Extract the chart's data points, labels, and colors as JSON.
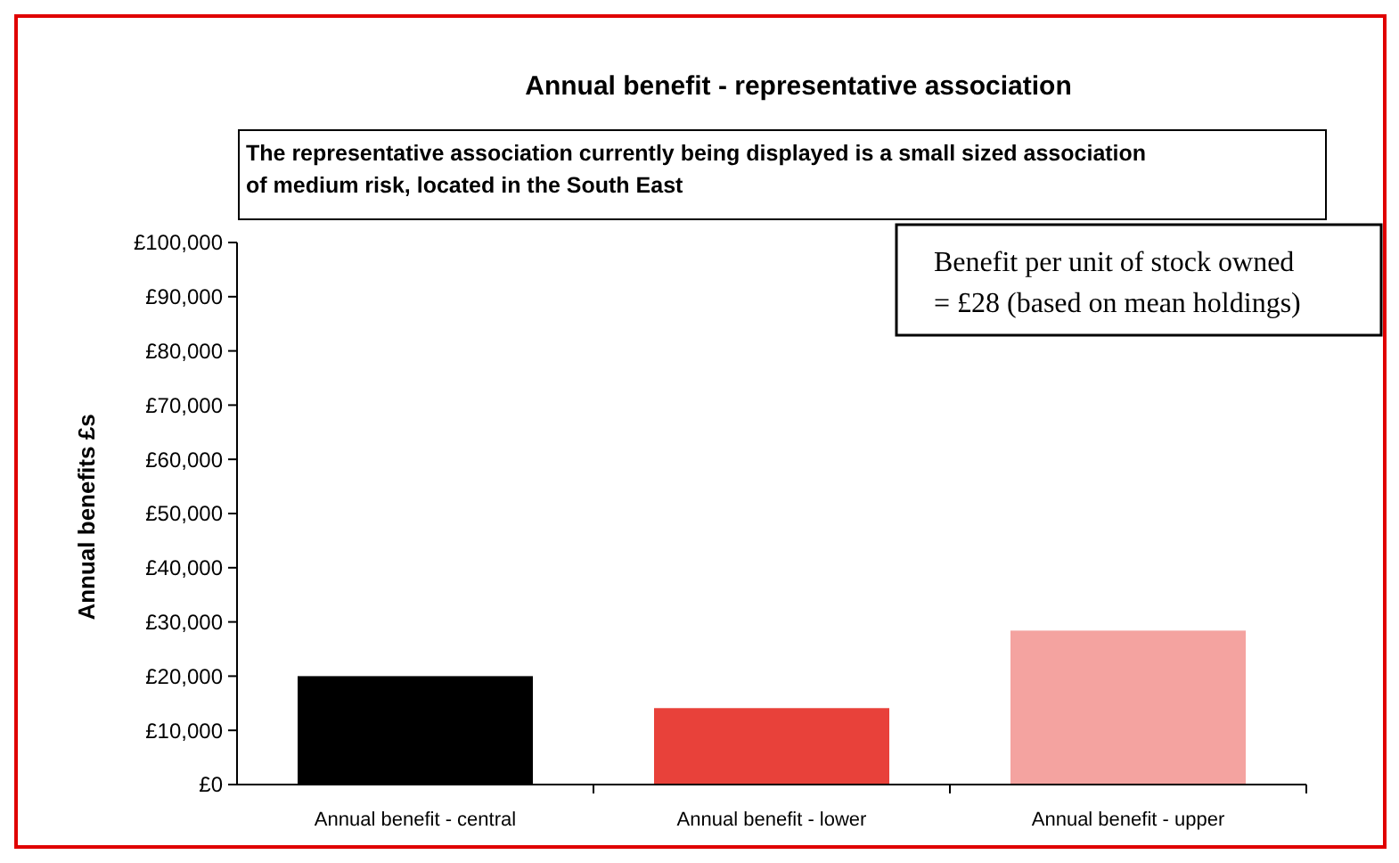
{
  "chart_data": {
    "type": "bar",
    "title": "Annual benefit - representative association",
    "subtitle": "The representative association currently being displayed is a small sized association\nof  medium risk, located in the South East",
    "annotations": [
      "Benefit per unit of stock owned\n= £28 (based on mean holdings)"
    ],
    "ylabel": "Annual benefits £s",
    "categories": [
      "Annual benefit - central",
      "Annual benefit - lower",
      "Annual benefit - upper"
    ],
    "values": [
      20000,
      14100,
      28400
    ],
    "colors": [
      "#000000",
      "#e8413a",
      "#f4a3a0"
    ],
    "ylim": [
      0,
      100000
    ],
    "yticks": [
      {
        "value": 0,
        "label": "£0"
      },
      {
        "value": 10000,
        "label": "£10,000"
      },
      {
        "value": 20000,
        "label": "£20,000"
      },
      {
        "value": 30000,
        "label": "£30,000"
      },
      {
        "value": 40000,
        "label": "£40,000"
      },
      {
        "value": 50000,
        "label": "£50,000"
      },
      {
        "value": 60000,
        "label": "£60,000"
      },
      {
        "value": 70000,
        "label": "£70,000"
      },
      {
        "value": 80000,
        "label": "£80,000"
      },
      {
        "value": 90000,
        "label": "£90,000"
      },
      {
        "value": 100000,
        "label": "£100,000"
      }
    ]
  }
}
